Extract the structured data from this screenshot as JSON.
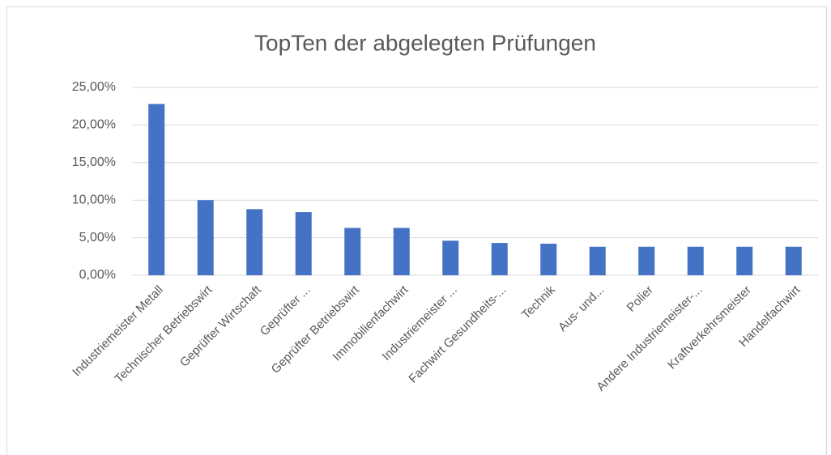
{
  "chart_data": {
    "type": "bar",
    "title": "TopTen der abgelegten Prüfungen",
    "categories": [
      "Industriemeister Metall",
      "Technischer Betriebswirt",
      "Geprüfter Wirtschaft",
      "Geprüfter ...",
      "Geprüfter Betriebswirt",
      "Immobilienfachwirt",
      "Industriemeister ...",
      "Fachwirt Gesundheits-...",
      "Technik",
      "Aus- und...",
      "Polier",
      "Andere Industriemeister-...",
      "Kraftverkehrsmeister",
      "Handelfachwirt"
    ],
    "values": [
      22.8,
      10.0,
      8.8,
      8.4,
      6.3,
      6.3,
      4.6,
      4.3,
      4.2,
      3.8,
      3.8,
      3.8,
      3.8,
      3.8
    ],
    "color": "#4472c4",
    "ylim": [
      0,
      25
    ],
    "yticks": [
      {
        "value": 0,
        "label": "0,00%"
      },
      {
        "value": 5,
        "label": "5,00%"
      },
      {
        "value": 10,
        "label": "10,00%"
      },
      {
        "value": 15,
        "label": "15,00%"
      },
      {
        "value": 20,
        "label": "20,00%"
      },
      {
        "value": 25,
        "label": "25,00%"
      }
    ],
    "grid": true
  }
}
